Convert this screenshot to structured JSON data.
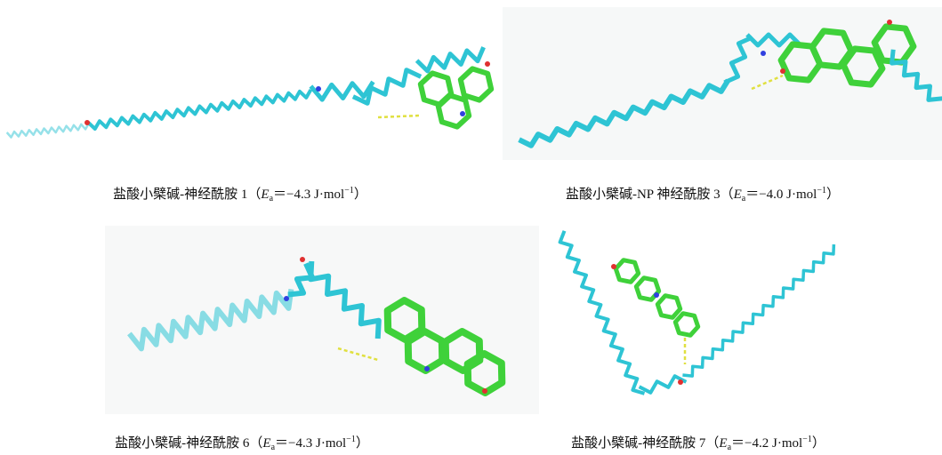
{
  "panels": [
    {
      "caption": {
        "prefix": "盐酸小檗碱-神经酰胺 1（",
        "symbol": "E",
        "subscript": "a",
        "value": "＝−4.3 J·mol",
        "superscript": "−1",
        "suffix": "）"
      }
    },
    {
      "caption": {
        "prefix": "盐酸小檗碱-NP 神经酰胺 3（",
        "symbol": "E",
        "subscript": "a",
        "value": "＝−4.0 J·mol",
        "superscript": "−1",
        "suffix": "）"
      }
    },
    {
      "caption": {
        "prefix": "盐酸小檗碱-神经酰胺 6（",
        "symbol": "E",
        "subscript": "a",
        "value": "＝−4.3 J·mol",
        "superscript": "−1",
        "suffix": "）"
      }
    },
    {
      "caption": {
        "prefix": "盐酸小檗碱-神经酰胺 7（",
        "symbol": "E",
        "subscript": "a",
        "value": "＝−4.2 J·mol",
        "superscript": "−1",
        "suffix": "）"
      }
    }
  ]
}
